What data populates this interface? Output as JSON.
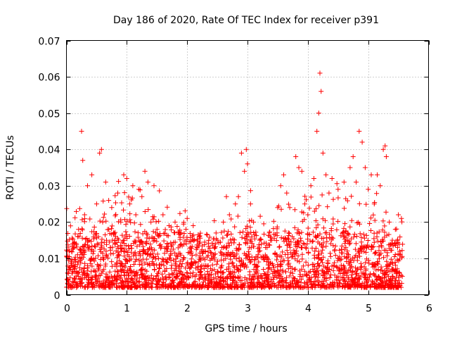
{
  "chart_data": {
    "type": "scatter",
    "title": "Day 186 of 2020, Rate Of TEC Index for receiver p391",
    "xlabel": "GPS time / hours",
    "ylabel": "ROTI / TECUs",
    "xlim": [
      0,
      6
    ],
    "ylim": [
      0,
      0.07
    ],
    "xticks": [
      0,
      1,
      2,
      3,
      4,
      5,
      6
    ],
    "xtick_labels": [
      "0",
      "1",
      "2",
      "3",
      "4",
      "5",
      "6"
    ],
    "yticks": [
      0,
      0.01,
      0.02,
      0.03,
      0.04,
      0.05,
      0.06,
      0.07
    ],
    "ytick_labels": [
      "0",
      "0.01",
      "0.02",
      "0.03",
      "0.04",
      "0.05",
      "0.06",
      "0.07"
    ],
    "grid": true,
    "marker": "+",
    "marker_color": "#ff0000",
    "series": [
      {
        "name": "ROTI",
        "x": [
          0.02,
          0.05,
          0.08,
          0.12,
          0.15,
          0.2,
          0.25,
          0.27,
          0.3,
          0.35,
          0.38,
          0.42,
          0.45,
          0.5,
          0.55,
          0.58,
          0.6,
          0.65,
          0.7,
          0.75,
          0.8,
          0.85,
          0.9,
          0.95,
          1.0,
          1.05,
          1.1,
          1.15,
          1.2,
          1.25,
          1.3,
          1.35,
          1.4,
          1.45,
          1.5,
          1.6,
          1.7,
          1.8,
          1.9,
          2.0,
          2.1,
          2.2,
          2.3,
          2.4,
          2.5,
          2.6,
          2.65,
          2.7,
          2.8,
          2.85,
          2.9,
          2.95,
          2.98,
          3.0,
          3.05,
          3.1,
          3.2,
          3.3,
          3.4,
          3.5,
          3.55,
          3.6,
          3.65,
          3.7,
          3.8,
          3.85,
          3.9,
          3.95,
          4.0,
          4.05,
          4.1,
          4.15,
          4.18,
          4.2,
          4.22,
          4.25,
          4.3,
          4.35,
          4.4,
          4.5,
          4.6,
          4.7,
          4.75,
          4.8,
          4.85,
          4.9,
          4.95,
          5.0,
          5.05,
          5.1,
          5.15,
          5.2,
          5.25,
          5.28,
          5.3,
          5.35,
          5.4,
          5.45,
          5.5,
          5.55
        ],
        "y": [
          0.006,
          0.012,
          0.008,
          0.014,
          0.009,
          0.018,
          0.045,
          0.037,
          0.022,
          0.03,
          0.015,
          0.033,
          0.012,
          0.025,
          0.039,
          0.04,
          0.02,
          0.031,
          0.018,
          0.024,
          0.015,
          0.028,
          0.02,
          0.033,
          0.032,
          0.025,
          0.03,
          0.022,
          0.029,
          0.027,
          0.034,
          0.031,
          0.02,
          0.03,
          0.018,
          0.022,
          0.019,
          0.02,
          0.017,
          0.021,
          0.019,
          0.016,
          0.012,
          0.01,
          0.015,
          0.02,
          0.027,
          0.022,
          0.025,
          0.027,
          0.039,
          0.034,
          0.04,
          0.036,
          0.025,
          0.02,
          0.015,
          0.013,
          0.015,
          0.024,
          0.03,
          0.033,
          0.028,
          0.024,
          0.038,
          0.035,
          0.034,
          0.025,
          0.022,
          0.03,
          0.032,
          0.045,
          0.05,
          0.061,
          0.056,
          0.039,
          0.033,
          0.028,
          0.032,
          0.029,
          0.031,
          0.035,
          0.038,
          0.031,
          0.045,
          0.042,
          0.035,
          0.029,
          0.033,
          0.025,
          0.033,
          0.03,
          0.04,
          0.041,
          0.038,
          0.02,
          0.015,
          0.018,
          0.022,
          0.021
        ]
      }
    ],
    "dense_band": {
      "x_range": [
        0.0,
        5.57
      ],
      "y_floor": 0.002,
      "y_typical_max": 0.016,
      "point_count": 2500
    }
  }
}
